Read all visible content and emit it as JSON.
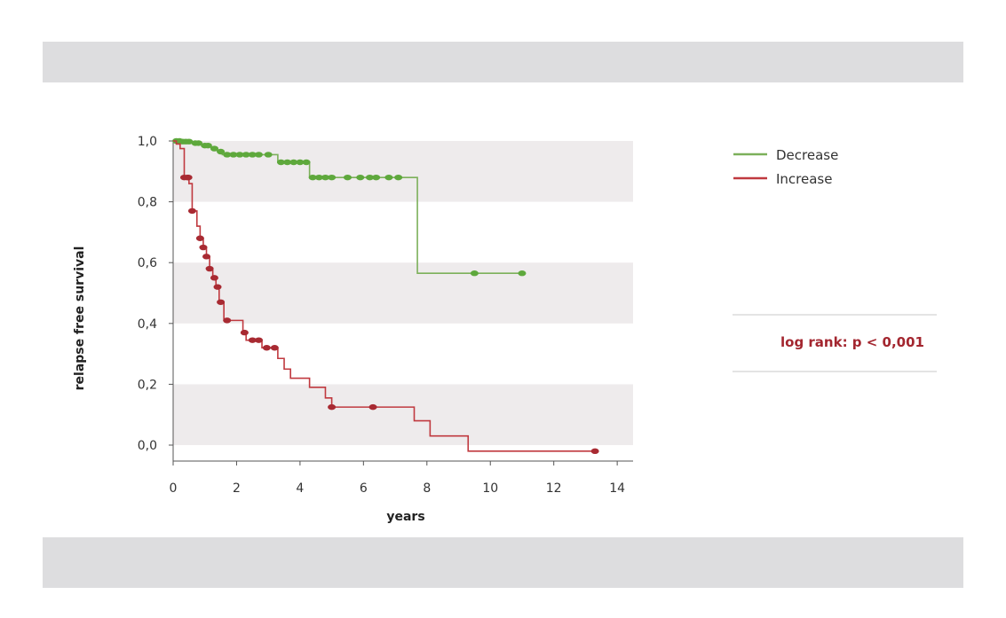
{
  "chart_data": {
    "type": "line",
    "xlabel": "years",
    "ylabel": "relapse free survival",
    "xlim": [
      0,
      14.5
    ],
    "ylim": [
      -0.07,
      1.0
    ],
    "x_ticks": [
      "0",
      "2",
      "4",
      "6",
      "8",
      "10",
      "12",
      "14"
    ],
    "x_tick_values": [
      0,
      2,
      4,
      6,
      8,
      10,
      12,
      14
    ],
    "y_ticks": [
      "1,0",
      "0,8",
      "0,6",
      "0,4",
      "0,2",
      "0,0"
    ],
    "y_tick_values": [
      1.0,
      0.8,
      0.6,
      0.4,
      0.2,
      0.0
    ],
    "grid": "alternating horizontal bands",
    "legend_position": "top-right",
    "series": [
      {
        "name": "Decrease",
        "color": "#7cb05a",
        "marker_color": "#5ea83c",
        "steps": [
          [
            0,
            1.0
          ],
          [
            0.3,
            0.998
          ],
          [
            0.6,
            0.993
          ],
          [
            0.9,
            0.985
          ],
          [
            1.2,
            0.975
          ],
          [
            1.4,
            0.965
          ],
          [
            1.55,
            0.955
          ],
          [
            3.3,
            0.93
          ],
          [
            4.3,
            0.88
          ],
          [
            7.7,
            0.565
          ],
          [
            11.0,
            0.565
          ]
        ],
        "censored": [
          0.1,
          0.2,
          0.3,
          0.4,
          0.5,
          0.7,
          0.8,
          1.0,
          1.1,
          1.3,
          1.5,
          1.7,
          1.9,
          2.1,
          2.3,
          2.5,
          2.7,
          3.0,
          3.4,
          3.6,
          3.8,
          4.0,
          4.2,
          4.4,
          4.6,
          4.8,
          5.0,
          5.5,
          5.9,
          6.2,
          6.4,
          6.8,
          7.1,
          9.5,
          11.0
        ]
      },
      {
        "name": "Increase",
        "color": "#c0393f",
        "marker_color": "#a82a32",
        "steps": [
          [
            0,
            1.0
          ],
          [
            0.1,
            0.99
          ],
          [
            0.22,
            0.975
          ],
          [
            0.35,
            0.88
          ],
          [
            0.5,
            0.86
          ],
          [
            0.6,
            0.77
          ],
          [
            0.75,
            0.72
          ],
          [
            0.85,
            0.68
          ],
          [
            0.95,
            0.65
          ],
          [
            1.05,
            0.62
          ],
          [
            1.15,
            0.58
          ],
          [
            1.25,
            0.55
          ],
          [
            1.35,
            0.52
          ],
          [
            1.45,
            0.47
          ],
          [
            1.6,
            0.41
          ],
          [
            2.2,
            0.37
          ],
          [
            2.3,
            0.345
          ],
          [
            2.6,
            0.345
          ],
          [
            2.8,
            0.32
          ],
          [
            3.1,
            0.32
          ],
          [
            3.3,
            0.285
          ],
          [
            3.5,
            0.25
          ],
          [
            3.7,
            0.22
          ],
          [
            4.3,
            0.19
          ],
          [
            4.8,
            0.155
          ],
          [
            5.0,
            0.125
          ],
          [
            7.6,
            0.08
          ],
          [
            8.1,
            0.03
          ],
          [
            9.3,
            -0.02
          ],
          [
            13.3,
            -0.02
          ]
        ],
        "censored": [
          0.35,
          0.45,
          0.48,
          0.6,
          0.85,
          0.95,
          1.05,
          1.15,
          1.3,
          1.4,
          1.5,
          1.7,
          2.25,
          2.5,
          2.7,
          2.95,
          3.2,
          5.0,
          6.3,
          13.3
        ]
      }
    ],
    "annotation": "log rank: p < 0,001",
    "annotation_color": "#a3262f"
  }
}
